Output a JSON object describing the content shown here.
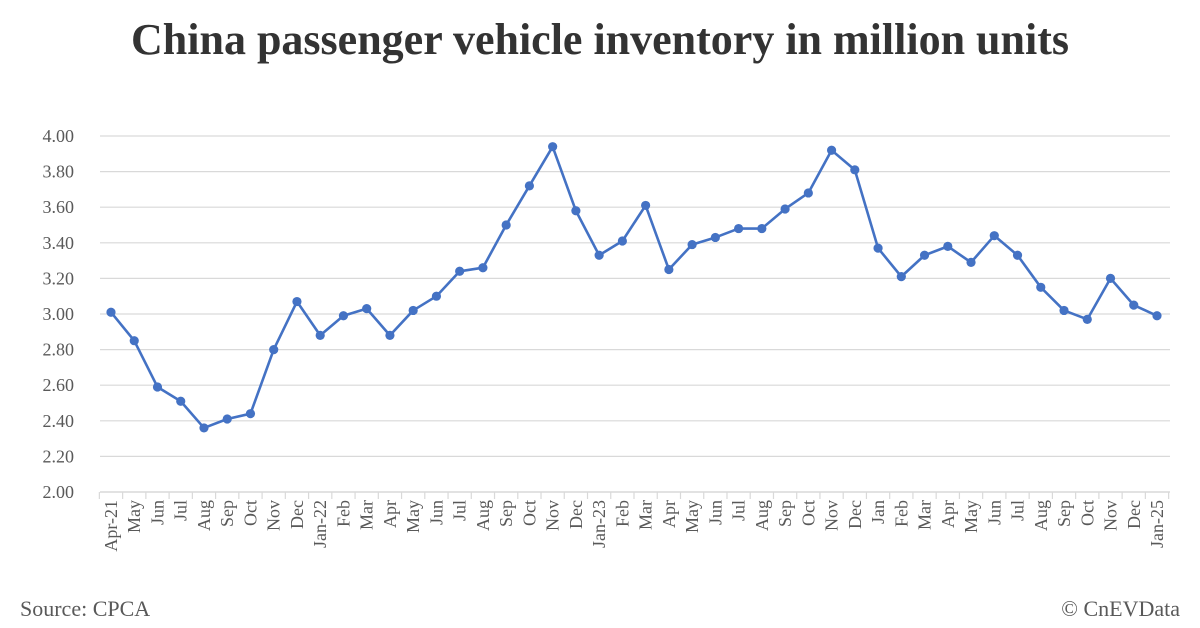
{
  "header": {
    "title": "China passenger vehicle inventory in million units"
  },
  "footer": {
    "source": "Source: CPCA",
    "credit": "© CnEVData"
  },
  "colors": {
    "line": "#4472C4",
    "grid": "#D9D9D9",
    "text": "#595959",
    "title": "#333333"
  },
  "chart_data": {
    "type": "line",
    "title": "China passenger vehicle inventory in million units",
    "xlabel": "",
    "ylabel": "",
    "ylim": [
      2.0,
      4.0
    ],
    "yticks": [
      "2.00",
      "2.20",
      "2.40",
      "2.60",
      "2.80",
      "3.00",
      "3.20",
      "3.40",
      "3.60",
      "3.80",
      "4.00"
    ],
    "grid": true,
    "legend": "none",
    "categories": [
      "Apr-21",
      "May",
      "Jun",
      "Jul",
      "Aug",
      "Sep",
      "Oct",
      "Nov",
      "Dec",
      "Jan-22",
      "Feb",
      "Mar",
      "Apr",
      "May",
      "Jun",
      "Jul",
      "Aug",
      "Sep",
      "Oct",
      "Nov",
      "Dec",
      "Jan-23",
      "Feb",
      "Mar",
      "Apr",
      "May",
      "Jun",
      "Jul",
      "Aug",
      "Sep",
      "Oct",
      "Nov",
      "Dec",
      "Jan",
      "Feb",
      "Mar",
      "Apr",
      "May",
      "Jun",
      "Jul",
      "Aug",
      "Sep",
      "Oct",
      "Nov",
      "Dec",
      "Jan-25"
    ],
    "series": [
      {
        "values": [
          3.01,
          2.85,
          2.59,
          2.51,
          2.36,
          2.41,
          2.44,
          2.8,
          3.07,
          2.88,
          2.99,
          3.03,
          2.88,
          3.02,
          3.1,
          3.24,
          3.26,
          3.5,
          3.72,
          3.94,
          3.58,
          3.33,
          3.41,
          3.61,
          3.25,
          3.39,
          3.43,
          3.48,
          3.48,
          3.59,
          3.68,
          3.92,
          3.81,
          3.37,
          3.21,
          3.33,
          3.38,
          3.29,
          3.44,
          3.33,
          3.15,
          3.02,
          2.97,
          3.2,
          3.05,
          2.99
        ]
      }
    ]
  }
}
